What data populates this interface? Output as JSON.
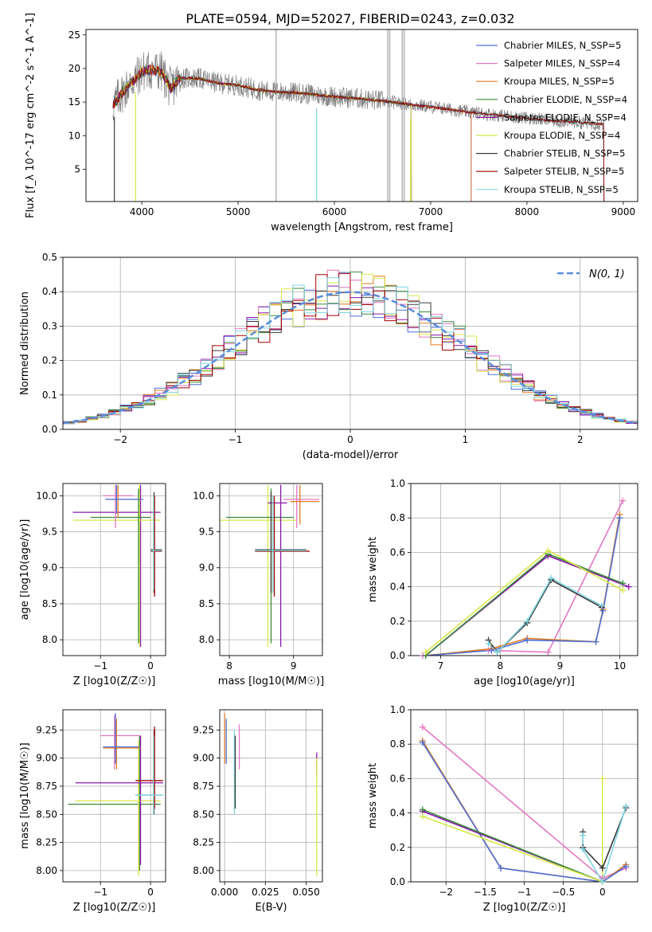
{
  "title": "PLATE=0594, MJD=52027, FIBERID=0243, z=0.032",
  "palette": {
    "chabrier_miles": "#4f6fd6",
    "salpeter_miles": "#e377c2",
    "kroupa_miles": "#e07b20",
    "chabrier_elodie": "#3a8a3a",
    "salpeter_elodie": "#8a1aa8",
    "kroupa_elodie": "#d8e84a",
    "chabrier_stelib": "#3a3a3a",
    "salpeter_stelib": "#a00000",
    "kroupa_stelib": "#7fd6e0",
    "data_gray": "#808080",
    "normal_dashed": "#5b8ddb"
  },
  "chart_data": [
    {
      "type": "line",
      "panel": "spectrum",
      "xlabel": "wavelength [Angstrom, rest frame]",
      "ylabel": "Flux [f_λ 10^-17 erg cm^-2 s^-1 A^-1]",
      "xlim": [
        3420,
        9150
      ],
      "ylim": [
        0.2,
        25.8
      ],
      "xticks": [
        4000,
        5000,
        6000,
        7000,
        8000,
        9000
      ],
      "yticks": [
        5,
        10,
        15,
        20,
        25
      ],
      "grid": false,
      "legend_position": "top-right",
      "legend": [
        "Chabrier MILES, N_SSP=5",
        "Salpeter MILES, N_SSP=4",
        "Kroupa MILES, N_SSP=5",
        "Chabrier ELODIE, N_SSP=4",
        "Salpeter ELODIE, N_SSP=4",
        "Kroupa ELODIE, N_SSP=4",
        "Chabrier STELIB, N_SSP=5",
        "Salpeter STELIB, N_SSP=5",
        "Kroupa STELIB, N_SSP=5"
      ],
      "continuum": {
        "x": [
          3700,
          3800,
          3900,
          4000,
          4100,
          4200,
          4300,
          4400,
          4600,
          4800,
          5000,
          5200,
          5400,
          5600,
          5800,
          6000,
          6200,
          6400,
          6600,
          6800,
          7000,
          7200,
          7400,
          7800,
          8200,
          8600,
          8800
        ],
        "y": [
          14.5,
          16.5,
          18.0,
          19.5,
          19.8,
          19.5,
          17.0,
          18.6,
          18.5,
          17.8,
          17.5,
          16.8,
          16.5,
          16.4,
          16.1,
          15.8,
          15.6,
          15.3,
          15.0,
          14.6,
          14.3,
          13.9,
          13.5,
          12.9,
          12.3,
          11.9,
          11.7
        ]
      },
      "model_cutoffs": {
        "ELODIE": 6800,
        "MILES": 7420,
        "STELIB": 8800
      }
    },
    {
      "type": "line",
      "panel": "residual-histogram",
      "xlabel": "(data-model)/error",
      "ylabel": "Normed distribution",
      "xlim": [
        -2.5,
        2.5
      ],
      "ylim": [
        0.0,
        0.5
      ],
      "xticks": [
        -2,
        -1,
        0,
        1,
        2
      ],
      "yticks": [
        0.0,
        0.1,
        0.2,
        0.3,
        0.4,
        0.5
      ],
      "grid": true,
      "legend_position": "top-right",
      "legend": [
        "N(0, 1)"
      ]
    },
    {
      "type": "scatter",
      "panel": "age-vs-Z",
      "xlabel": "Z [log10(Z/Z☉)]",
      "ylabel": "age [log10(age/yr)]",
      "xlim": [
        -1.75,
        0.3
      ],
      "ylim": [
        7.78,
        10.17
      ],
      "xticks": [
        -1,
        0
      ],
      "yticks": [
        8.0,
        8.5,
        9.0,
        9.5,
        10.0
      ],
      "grid": true
    },
    {
      "type": "scatter",
      "panel": "age-vs-mass",
      "xlabel": "mass [log10(M/M☉)]",
      "ylabel": "",
      "xlim": [
        7.85,
        9.45
      ],
      "ylim": [
        7.78,
        10.17
      ],
      "xticks": [
        8,
        9
      ],
      "yticks": [
        8.0,
        8.5,
        9.0,
        9.5,
        10.0
      ],
      "grid": true
    },
    {
      "type": "line",
      "panel": "mass-weight-vs-age",
      "xlabel": "age [log10(age/yr)]",
      "ylabel": "mass weight",
      "xlim": [
        6.5,
        10.3
      ],
      "ylim": [
        0.0,
        1.0
      ],
      "xticks": [
        7,
        8,
        9,
        10
      ],
      "yticks": [
        0.0,
        0.2,
        0.4,
        0.6,
        0.8,
        1.0
      ],
      "grid": true,
      "series": [
        {
          "color": "salpeter_miles",
          "x": [
            6.7,
            7.8,
            8.8,
            10.05
          ],
          "y": [
            0.0,
            0.03,
            0.02,
            0.9
          ]
        },
        {
          "color": "kroupa_miles",
          "x": [
            6.75,
            7.85,
            8.45,
            9.6,
            9.72,
            10.0
          ],
          "y": [
            0.0,
            0.04,
            0.1,
            0.08,
            0.27,
            0.82
          ]
        },
        {
          "color": "chabrier_miles",
          "x": [
            6.75,
            7.85,
            8.45,
            9.6,
            9.72,
            10.0
          ],
          "y": [
            0.0,
            0.03,
            0.09,
            0.08,
            0.26,
            0.8
          ]
        },
        {
          "color": "salpeter_elodie",
          "x": [
            6.75,
            8.8,
            10.15
          ],
          "y": [
            0.0,
            0.58,
            0.4
          ]
        },
        {
          "color": "chabrier_elodie",
          "x": [
            6.75,
            8.8,
            10.05
          ],
          "y": [
            0.0,
            0.59,
            0.42
          ]
        },
        {
          "color": "kroupa_elodie",
          "x": [
            6.75,
            8.8,
            10.05
          ],
          "y": [
            0.02,
            0.61,
            0.38
          ]
        },
        {
          "color": "chabrier_stelib",
          "x": [
            7.8,
            7.95,
            8.45,
            8.85,
            9.7
          ],
          "y": [
            0.09,
            0.02,
            0.19,
            0.44,
            0.28
          ]
        },
        {
          "color": "kroupa_stelib",
          "x": [
            7.8,
            7.95,
            8.45,
            8.85,
            9.7
          ],
          "y": [
            0.07,
            0.02,
            0.2,
            0.45,
            0.29
          ]
        }
      ]
    },
    {
      "type": "scatter",
      "panel": "mass-vs-Z",
      "xlabel": "Z [log10(Z/Z☉)]",
      "ylabel": "mass [log10(M/M☉)]",
      "xlim": [
        -1.75,
        0.3
      ],
      "ylim": [
        7.9,
        9.43
      ],
      "xticks": [
        -1,
        0
      ],
      "yticks": [
        8.0,
        8.25,
        8.5,
        8.75,
        9.0,
        9.25
      ],
      "grid": true
    },
    {
      "type": "scatter",
      "panel": "mass-vs-ebv",
      "xlabel": "E(B-V)",
      "ylabel": "",
      "xlim": [
        -0.003,
        0.06
      ],
      "ylim": [
        7.9,
        9.43
      ],
      "xticks": [
        0.0,
        0.025,
        0.05
      ],
      "xtick_labels": [
        "0.000",
        "0.025",
        "0.050"
      ],
      "yticks": [
        8.0,
        8.25,
        8.5,
        8.75,
        9.0,
        9.25
      ],
      "grid": true
    },
    {
      "type": "line",
      "panel": "mass-weight-vs-Z",
      "xlabel": "Z [log10(Z/Z☉)]",
      "ylabel": "mass weight",
      "xlim": [
        -2.45,
        0.45
      ],
      "ylim": [
        0.0,
        1.0
      ],
      "xticks": [
        -2.0,
        -1.5,
        -1.0,
        -0.5,
        0.0
      ],
      "yticks": [
        0.0,
        0.2,
        0.4,
        0.6,
        0.8,
        1.0
      ],
      "grid": true,
      "series": [
        {
          "color": "salpeter_miles",
          "x": [
            -2.3,
            0.0,
            0.3
          ],
          "y": [
            0.9,
            0.02,
            0.08
          ]
        },
        {
          "color": "kroupa_miles",
          "x": [
            -2.3,
            -1.3,
            0.0,
            0.3
          ],
          "y": [
            0.82,
            0.08,
            0.0,
            0.1
          ]
        },
        {
          "color": "chabrier_miles",
          "x": [
            -2.3,
            -1.3,
            0.0,
            0.3
          ],
          "y": [
            0.81,
            0.08,
            0.0,
            0.09
          ]
        },
        {
          "color": "salpeter_elodie",
          "x": [
            -2.3,
            0.0
          ],
          "y": [
            0.41,
            0.0
          ]
        },
        {
          "color": "chabrier_elodie",
          "x": [
            -2.3,
            0.0
          ],
          "y": [
            0.42,
            0.0
          ]
        },
        {
          "color": "kroupa_elodie",
          "x": [
            -2.3,
            0.0,
            0.0
          ],
          "y": [
            0.38,
            0.0,
            0.6
          ]
        },
        {
          "color": "chabrier_stelib",
          "x": [
            -0.25,
            -0.25,
            0.0,
            0.3
          ],
          "y": [
            0.29,
            0.2,
            0.08,
            0.43
          ]
        },
        {
          "color": "kroupa_stelib",
          "x": [
            -0.25,
            -0.25,
            0.0,
            0.3
          ],
          "y": [
            0.27,
            0.19,
            0.0,
            0.44
          ]
        }
      ]
    }
  ]
}
